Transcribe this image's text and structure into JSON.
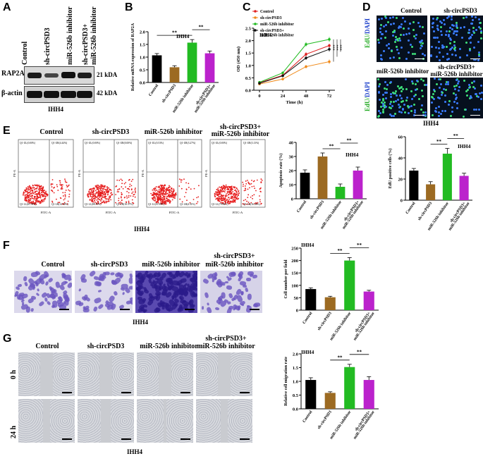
{
  "panels": {
    "A": "A",
    "B": "B",
    "C": "C",
    "D": "D",
    "E": "E",
    "F": "F",
    "G": "G"
  },
  "cell_line": "IHH4",
  "groups": [
    "Control",
    "sh-circPSD3",
    "miR-526b inhibitor",
    "sh-circPSD3+\nmiR-526b inhibitor"
  ],
  "group_labels_wrapped": {
    "g1": "Control",
    "g2": "sh-circPSD3",
    "g3": "miR-526b inhibitor",
    "g4a": "sh-circPSD3+",
    "g4b": "miR-526b inhibitor"
  },
  "colors": {
    "control": "#000000",
    "sh": "#9c6a22",
    "inh": "#22bb22",
    "combo": "#bb22cc"
  },
  "western": {
    "columns": [
      "Control",
      "sh-circPSD3",
      "miR-526b inhibitor",
      "sh-circPSD3+\nmiR-526b inhibitor"
    ],
    "rows": [
      {
        "name": "RAP2A",
        "size": "21 kDA"
      },
      {
        "name": "β-actin",
        "size": "42 kDA"
      }
    ],
    "cell_line": "IHH4"
  },
  "microscopy_d": {
    "label_a": "EdU/",
    "label_b": "DAPI",
    "titles": [
      "Control",
      "sh-circPSD3",
      "miR-526b inhibitor",
      "sh-circPSD3+\nmiR-526b inhibitor"
    ],
    "cell_line": "IHH4"
  },
  "flow": {
    "titles": [
      "Control",
      "sh-circPSD3",
      "miR-526b inhibitor",
      "sh-circPSD3+\nmiR-526b inhibitor"
    ],
    "quadrants": [
      [
        "Q1-UL(0.00%)",
        "Q1-UR(4.44%)",
        "Q1-LL(81.59%)",
        "Q1-LR(14.50%)"
      ],
      [
        "Q1-UL(0.00%)",
        "Q1-UR(0.00%)",
        "Q1-LL(88.59%)",
        "Q1-LR(18.37%)"
      ],
      [
        "Q1-UL(0.53%)",
        "Q1-UR(3.27%)",
        "Q1-LL(91.89%)",
        "Q1-LR(4.31%)"
      ],
      [
        "Q1-UL(0.00%)",
        "Q1-UR(3.13%)",
        "Q1-LL(79.80%)",
        "Q1-LR(16.26%)"
      ]
    ],
    "xlabel": "FITC-A",
    "ylabel": "PE-A",
    "cell_line": "IHH4"
  },
  "transwell_f": {
    "titles": [
      "Control",
      "sh-circPSD3",
      "miR-526b inhibitor",
      "sh-circPSD3+\nmiR-526b inhibitor"
    ],
    "cell_line": "IHH4"
  },
  "wound_g": {
    "titles": [
      "Control",
      "sh-circPSD3",
      "miR-526b inhibitor",
      "sh-circPSD3+\nmiR-526b inhibitor"
    ],
    "rows": [
      "0 h",
      "24 h"
    ],
    "cell_line": "IHH4"
  },
  "chart_data": [
    {
      "id": "B",
      "type": "bar",
      "title": "IHH4",
      "ylabel": "Relative mRNA expression of RAP2A",
      "categories": [
        "Control",
        "sh-circPSD3",
        "miR-526b inhibitor",
        "sh-circPSD3+\nmiR-526b inhibitor"
      ],
      "values": [
        1.07,
        0.6,
        1.57,
        1.15
      ],
      "errors": [
        0.07,
        0.06,
        0.12,
        0.09
      ],
      "ylim": [
        0,
        2.0
      ],
      "yticks": [
        "0.0",
        "0.5",
        "1.0",
        "1.5",
        "2.0"
      ],
      "significance": [
        {
          "from": 0,
          "to": 2,
          "label": "**"
        },
        {
          "from": 2,
          "to": 3,
          "label": "**"
        }
      ]
    },
    {
      "id": "C",
      "type": "line",
      "title": "IHH4",
      "ylabel": "OD (450 nm)",
      "xlabel": "Time (h)",
      "x": [
        0,
        24,
        48,
        72
      ],
      "xticks": [
        "0",
        "24",
        "48",
        "72"
      ],
      "ylim": [
        0.0,
        2.5
      ],
      "yticks": [
        "0.0",
        "0.5",
        "1.0",
        "1.5",
        "2.0",
        "2.5"
      ],
      "series": [
        {
          "name": "Control",
          "values": [
            0.3,
            0.6,
            1.45,
            1.8
          ],
          "errors": [
            0.04,
            0.05,
            0.08,
            0.08
          ]
        },
        {
          "name": "sh-circPSD3",
          "values": [
            0.25,
            0.45,
            0.95,
            1.15
          ],
          "errors": [
            0.04,
            0.05,
            0.07,
            0.09
          ]
        },
        {
          "name": "miR-526b inhibitor",
          "values": [
            0.32,
            0.7,
            1.85,
            2.05
          ],
          "errors": [
            0.04,
            0.05,
            0.09,
            0.1
          ]
        },
        {
          "name": "sh-circPSD3+\nmiR-526b inhibitor",
          "values": [
            0.28,
            0.58,
            1.3,
            1.65
          ],
          "errors": [
            0.04,
            0.05,
            0.08,
            0.09
          ]
        }
      ],
      "significance": [
        "***",
        "***",
        "***"
      ]
    },
    {
      "id": "E-apoptosis",
      "type": "bar",
      "title": "IHH4",
      "ylabel": "Apoptosis rate (%)",
      "categories": [
        "Control",
        "sh-circPSD3",
        "miR-526b inhibitor",
        "sh-circPSD3+\nmiR-526b inhibitor"
      ],
      "values": [
        18.5,
        30,
        8.5,
        20
      ],
      "errors": [
        2,
        2.5,
        2,
        2.5
      ],
      "ylim": [
        0,
        40
      ],
      "yticks": [
        "0",
        "10",
        "20",
        "30",
        "40"
      ],
      "significance": [
        {
          "from": 1,
          "to": 2,
          "label": "**"
        },
        {
          "from": 2,
          "to": 3,
          "label": "**"
        }
      ]
    },
    {
      "id": "E-edu",
      "type": "bar",
      "title": "IHH4",
      "ylabel": "EdU positive cells (%)",
      "categories": [
        "Control",
        "sh-circPSD3",
        "miR-526b inhibitor",
        "sh-circPSD3+\nmiR-526b inhibitor"
      ],
      "values": [
        28,
        15,
        44,
        23
      ],
      "errors": [
        2,
        2.5,
        5,
        2.5
      ],
      "ylim": [
        0,
        60
      ],
      "yticks": [
        "0",
        "20",
        "40",
        "60"
      ],
      "significance": [
        {
          "from": 1,
          "to": 2,
          "label": "**"
        },
        {
          "from": 2,
          "to": 3,
          "label": "**"
        }
      ]
    },
    {
      "id": "F",
      "type": "bar",
      "title": "IHH4",
      "ylabel": "Cell number per field",
      "categories": [
        "Control",
        "sh-circPSD3",
        "miR-526b inhibitor",
        "sh-circPSD3+\nmiR-526b inhibitor"
      ],
      "values": [
        85,
        52,
        200,
        75
      ],
      "errors": [
        5,
        4,
        12,
        5
      ],
      "ylim": [
        0,
        250
      ],
      "yticks": [
        "0",
        "50",
        "100",
        "150",
        "200",
        "250"
      ],
      "significance": [
        {
          "from": 1,
          "to": 2,
          "label": "**"
        },
        {
          "from": 2,
          "to": 3,
          "label": "**"
        }
      ]
    },
    {
      "id": "G",
      "type": "bar",
      "title": "IHH4",
      "ylabel": "Relative cell migration rate",
      "categories": [
        "Control",
        "sh-circPSD3",
        "miR-526b inhibitor",
        "sh-circPSD3+\nmiR-526b inhibitor"
      ],
      "values": [
        1.05,
        0.58,
        1.52,
        1.05
      ],
      "errors": [
        0.08,
        0.04,
        0.1,
        0.12
      ],
      "ylim": [
        0,
        2.0
      ],
      "yticks": [
        "0.0",
        "0.5",
        "1.0",
        "1.5",
        "2.0"
      ],
      "significance": [
        {
          "from": 1,
          "to": 2,
          "label": "**"
        },
        {
          "from": 2,
          "to": 3,
          "label": "**"
        }
      ]
    }
  ]
}
